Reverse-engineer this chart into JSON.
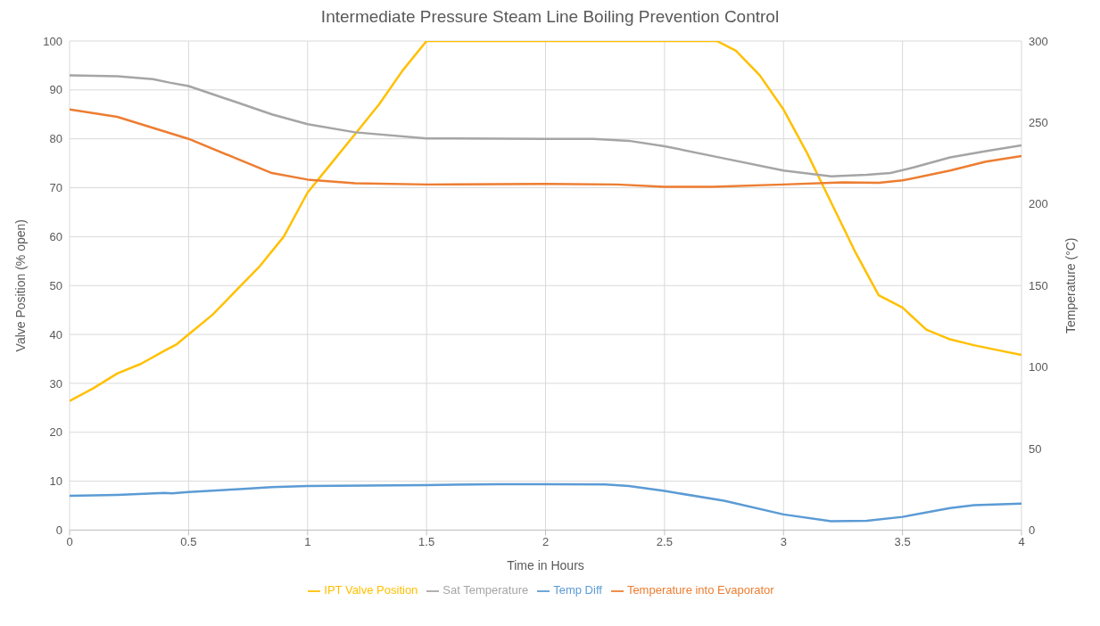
{
  "chart_data": {
    "type": "line",
    "title": "Intermediate Pressure Steam Line Boiling Prevention Control",
    "xlabel": "Time in Hours",
    "ylabel": "Valve Position (% open)",
    "y2label": "Temperature (°C)",
    "xlim": [
      0,
      4
    ],
    "xticks": [
      0,
      0.5,
      1,
      1.5,
      2,
      2.5,
      3,
      3.5,
      4
    ],
    "ylim": [
      0,
      100
    ],
    "yticks": [
      0,
      10,
      20,
      30,
      40,
      50,
      60,
      70,
      80,
      90,
      100
    ],
    "y2lim": [
      0,
      300
    ],
    "y2ticks": [
      0,
      50,
      100,
      150,
      200,
      250,
      300
    ],
    "grid": true,
    "legend": "bottom",
    "marker": "none",
    "line_style": "solid",
    "series": [
      {
        "name": "IPT Valve Position",
        "color": "#ffc000",
        "x": [
          0,
          0.1,
          0.2,
          0.3,
          0.4,
          0.45,
          0.5,
          0.6,
          0.7,
          0.8,
          0.9,
          1.0,
          1.1,
          1.2,
          1.3,
          1.4,
          1.5,
          2.0,
          2.5,
          2.72,
          2.8,
          2.9,
          3.0,
          3.1,
          3.2,
          3.3,
          3.4,
          3.5,
          3.6,
          3.7,
          3.8,
          3.9,
          4.0
        ],
        "values": [
          26.4,
          29,
          32,
          34,
          36.7,
          38,
          40,
          44,
          49,
          54,
          60,
          69,
          75,
          81,
          87,
          94,
          100,
          100,
          100,
          100,
          98,
          93,
          86,
          77,
          67,
          57,
          48,
          45.5,
          41,
          39,
          37.8,
          36.8,
          35.8
        ]
      },
      {
        "name": "Temp Diff",
        "color": "#5b9bd5",
        "axis": "y2",
        "x": [
          0,
          0.2,
          0.4,
          0.43,
          0.5,
          0.7,
          0.85,
          1.0,
          1.5,
          1.8,
          2.0,
          2.25,
          2.35,
          2.5,
          2.75,
          3.0,
          3.2,
          3.35,
          3.5,
          3.7,
          3.8,
          4.0
        ],
        "values": [
          21,
          21.6,
          22.8,
          22.5,
          23.4,
          25,
          26.4,
          27,
          27.6,
          28.2,
          28.2,
          28,
          27,
          24,
          18,
          9.6,
          5.4,
          5.7,
          8.1,
          13.5,
          15.3,
          16.2
        ]
      },
      {
        "name": "Temperature into Evaporator",
        "color": "#ed7d31",
        "axis": "y2",
        "x": [
          0,
          0.2,
          0.4,
          0.5,
          0.7,
          0.85,
          1.0,
          1.2,
          1.5,
          2.0,
          2.3,
          2.5,
          2.7,
          3.0,
          3.25,
          3.4,
          3.5,
          3.7,
          3.85,
          4.0
        ],
        "values": [
          258,
          253.5,
          244.5,
          240,
          228,
          219,
          215,
          212.7,
          212,
          212.4,
          212,
          210.6,
          210.6,
          212,
          213.3,
          213,
          214.5,
          220.5,
          226,
          229.5
        ]
      },
      {
        "name": "Sat Temperature",
        "color": "#a5a5a5",
        "axis": "y2",
        "x": [
          0,
          0.2,
          0.35,
          0.42,
          0.5,
          0.7,
          0.85,
          1.0,
          1.2,
          1.5,
          2.0,
          2.2,
          2.35,
          2.5,
          2.75,
          3.0,
          3.2,
          3.35,
          3.45,
          3.55,
          3.7,
          3.85,
          4.0
        ],
        "values": [
          279,
          278.4,
          276.6,
          274.5,
          272.4,
          262.5,
          255,
          249,
          244,
          240.3,
          240,
          240,
          238.8,
          235.5,
          228,
          220.5,
          217,
          218,
          219,
          222.6,
          228.6,
          232.5,
          236
        ]
      }
    ]
  }
}
